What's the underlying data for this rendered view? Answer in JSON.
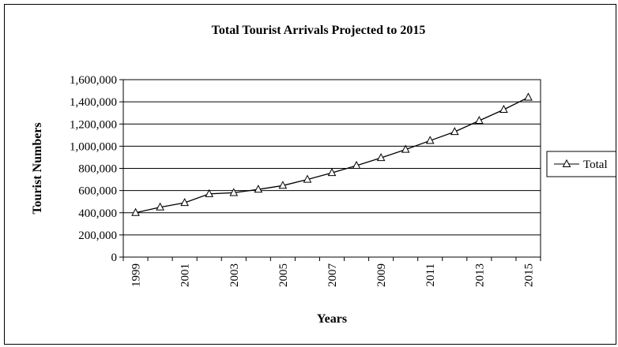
{
  "chart_data": {
    "type": "line",
    "title": "Total Tourist Arrivals Projected to 2015",
    "xlabel": "Years",
    "ylabel": "Tourist Numbers",
    "ylim": [
      0,
      1600000
    ],
    "yticks": [
      0,
      200000,
      400000,
      600000,
      800000,
      1000000,
      1200000,
      1400000,
      1600000
    ],
    "ytick_labels": [
      "0",
      "200,000",
      "400,000",
      "600,000",
      "800,000",
      "1,000,000",
      "1,200,000",
      "1,400,000",
      "1,600,000"
    ],
    "x": [
      1999,
      2000,
      2001,
      2002,
      2003,
      2004,
      2005,
      2006,
      2007,
      2008,
      2009,
      2010,
      2011,
      2012,
      2013,
      2014,
      2015
    ],
    "xtick_labels": [
      "1999",
      "2001",
      "2003",
      "2005",
      "2007",
      "2009",
      "2011",
      "2013",
      "2015"
    ],
    "series": [
      {
        "name": "Total",
        "marker": "triangle",
        "values": [
          400000,
          450000,
          490000,
          570000,
          580000,
          610000,
          645000,
          700000,
          760000,
          825000,
          895000,
          970000,
          1050000,
          1130000,
          1230000,
          1330000,
          1440000
        ]
      }
    ],
    "grid": "horizontal",
    "legend": "right"
  },
  "colors": {
    "line": "#000000",
    "grid": "#000000",
    "background": "#ffffff"
  }
}
